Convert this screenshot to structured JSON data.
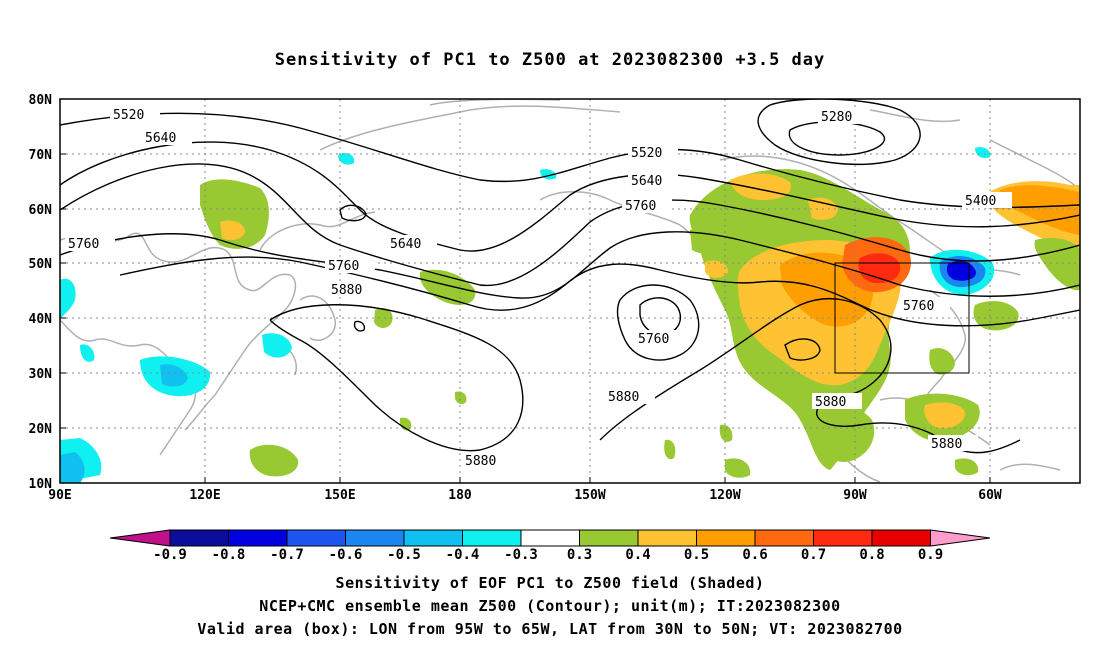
{
  "title": "Sensitivity of PC1 to Z500 at 2023082300 +3.5 day",
  "lat_labels": [
    "80N",
    "70N",
    "60N",
    "50N",
    "40N",
    "30N",
    "20N",
    "10N"
  ],
  "lon_labels": [
    "90E",
    "120E",
    "150E",
    "180",
    "150W",
    "120W",
    "90W",
    "60W"
  ],
  "contour_labels": [
    "5520",
    "5640",
    "5760",
    "5640",
    "5760",
    "5880",
    "5520",
    "5640",
    "5760",
    "5280",
    "5400",
    "5760",
    "5760",
    "5880",
    "5880",
    "5880",
    "5880"
  ],
  "colorbar": {
    "labels": [
      "-0.9",
      "-0.8",
      "-0.7",
      "-0.6",
      "-0.5",
      "-0.4",
      "-0.3",
      "0.3",
      "0.4",
      "0.5",
      "0.6",
      "0.7",
      "0.8",
      "0.9"
    ],
    "colors": [
      "#c0108a",
      "#0d0d9c",
      "#0000e0",
      "#1c55ef",
      "#1a86f0",
      "#10c0f0",
      "#10f0f0",
      "#ffffff",
      "#98c832",
      "#ffc232",
      "#ff9e00",
      "#ff6a10",
      "#ff2a10",
      "#e80000",
      "#ff9ccc"
    ]
  },
  "valid_box": {
    "lon_from": "95W",
    "lon_to": "65W",
    "lat_from": "30N",
    "lat_to": "50N"
  },
  "footer": {
    "line1": "Sensitivity of EOF PC1 to Z500 field (Shaded)",
    "line2": "NCEP+CMC ensemble mean Z500 (Contour); unit(m); IT:2023082300",
    "line3": "Valid area (box): LON from 95W to 65W, LAT from 30N to 50N; VT: 2023082700"
  }
}
